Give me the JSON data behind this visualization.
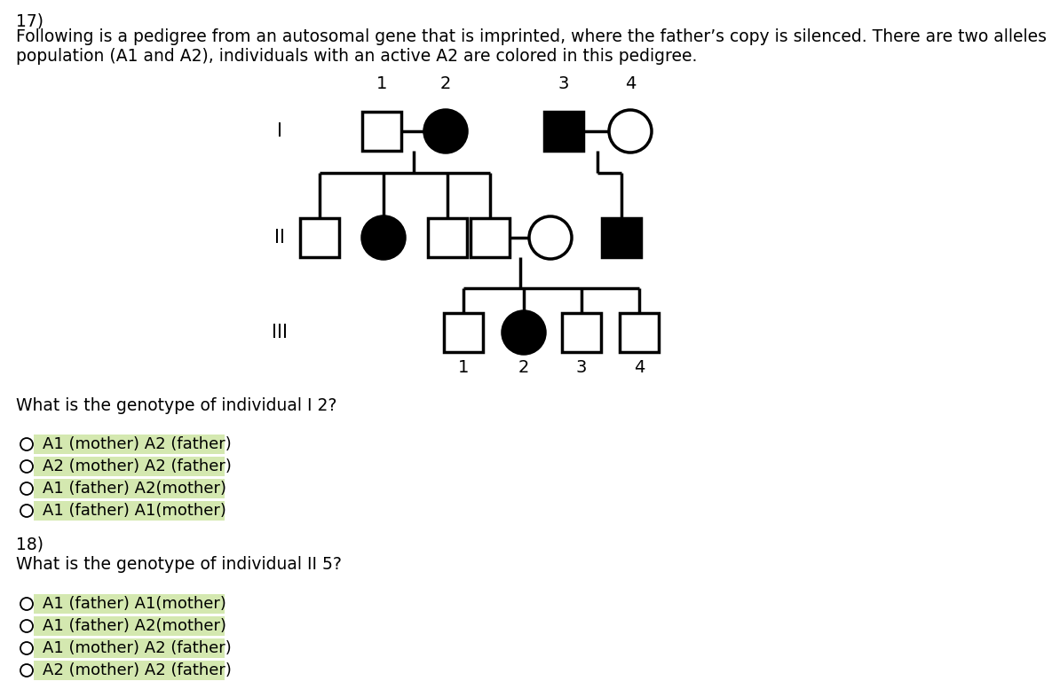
{
  "title_line1": "17)",
  "description_line1": "Following is a pedigree from an autosomal gene that is imprinted, where the father’s copy is silenced. There are two alleles in this",
  "description_line2": "population (A1 and A2), individuals with an active A2 are colored in this pedigree.",
  "question1": "What is the genotype of individual I 2?",
  "question2_num": "18)",
  "question2": "What is the genotype of individual II 5?",
  "options_q1": [
    "A1 (mother) A2 (father)",
    "A2 (mother) A2 (father)",
    "A1 (father) A2(mother)",
    "A1 (father) A1(mother)"
  ],
  "options_q2": [
    "A1 (father) A1(mother)",
    "A1 (father) A2(mother)",
    "A1 (mother) A2 (father)",
    "A2 (mother) A2 (father)"
  ],
  "option_bg_color": "#d4e8b0",
  "bg_color": "#ffffff",
  "text_color": "#000000"
}
